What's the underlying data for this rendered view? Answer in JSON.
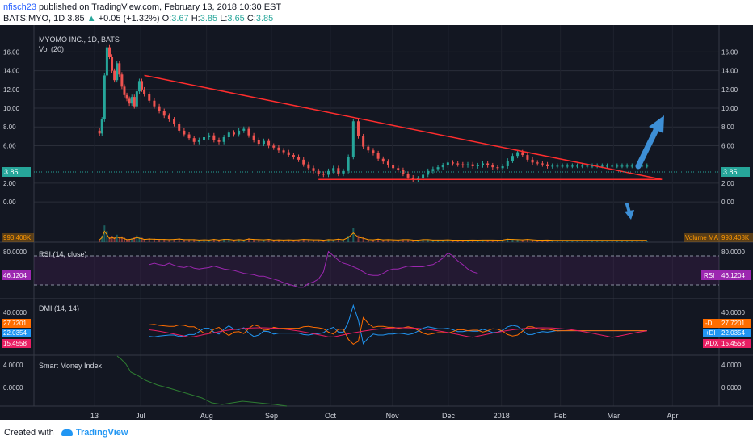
{
  "header": {
    "user": "nfisch23",
    "published": " published on TradingView.com, February 13, 2018 10:30 EST",
    "symbol": "BATS:MYO, 1D",
    "last": "3.85",
    "change_arrow": "▲",
    "change": "+0.05 (+1.32%)",
    "o_label": "O:",
    "o_val": "3.67",
    "h_label": "H:",
    "h_val": "3.85",
    "l_label": "L:",
    "l_val": "3.65",
    "c_label": "C:",
    "c_val": "3.85"
  },
  "footer": {
    "created_with": "Created with",
    "brand": "TradingView"
  },
  "colors": {
    "background": "#131722",
    "up": "#26a69a",
    "down": "#ef5350",
    "trendline": "#ff2d2d",
    "annotation_arrow": "#3d8fd6",
    "rsi": "#9c27b0",
    "dmi_plus": "#2196f3",
    "dmi_minus": "#ff6d00",
    "adx": "#e91e63",
    "smi": "#2e7d32",
    "volume_ma": "#ff9800"
  },
  "chart_data": {
    "type": "line",
    "title": "MYOMO INC., 1D, BATS",
    "subtitle": "Vol (20)",
    "x_ticks": [
      "13",
      "Jul",
      "Aug",
      "Sep",
      "Oct",
      "Nov",
      "Dec",
      "2018",
      "Feb",
      "Mar",
      "Apr"
    ],
    "ylim": [
      -1.2,
      17.5
    ],
    "y_ticks": [
      "16.00",
      "14.00",
      "12.00",
      "10.00",
      "8.00",
      "6.00",
      "2.00",
      "0.00"
    ],
    "last_price_label": "3.85",
    "volume_label": "993.408K",
    "volume_ma_label": "Volume MA",
    "price_series": {
      "name": "MYO",
      "x": [
        0,
        2,
        3,
        4,
        5,
        6,
        7,
        8,
        9,
        10,
        11,
        12,
        13,
        14,
        15,
        16,
        17,
        18,
        19,
        20,
        22,
        24,
        26,
        28,
        30,
        32,
        34,
        36,
        38,
        40,
        42,
        44,
        46,
        48,
        50,
        52,
        54,
        56,
        58,
        60,
        62,
        64,
        66,
        68,
        70,
        72,
        74,
        76,
        78,
        80,
        82,
        84,
        86,
        88,
        90,
        92,
        94,
        96,
        98,
        100,
        102,
        104,
        106,
        108,
        110,
        112,
        114,
        116,
        118,
        120,
        122,
        124,
        126,
        128,
        130,
        132,
        134,
        136,
        138,
        140,
        142,
        144,
        146,
        148,
        150,
        152,
        154,
        156,
        158,
        160,
        162,
        164,
        166,
        168,
        170,
        172,
        174,
        176,
        178,
        180,
        182,
        184,
        186,
        188,
        190,
        192,
        194,
        196,
        198,
        200,
        202,
        204,
        206,
        208,
        210,
        212,
        214,
        216,
        218,
        220,
        222,
        224,
        226,
        228,
        230,
        232,
        234,
        236,
        238,
        240,
        242,
        244,
        246,
        248,
        250
      ],
      "y": [
        7.6,
        7.3,
        8.8,
        13.5,
        16.5,
        15.5,
        14.0,
        13.0,
        14.8,
        13.6,
        12.3,
        11.4,
        11.0,
        10.5,
        11.2,
        10.2,
        11.8,
        12.9,
        12.0,
        11.5,
        10.8,
        10.2,
        9.7,
        9.2,
        8.8,
        8.3,
        7.6,
        7.2,
        6.8,
        6.4,
        6.6,
        6.9,
        7.1,
        6.6,
        6.4,
        6.9,
        7.4,
        7.2,
        7.6,
        7.8,
        7.1,
        6.6,
        6.2,
        6.5,
        6.0,
        5.8,
        5.5,
        5.3,
        5.0,
        4.8,
        4.5,
        4.0,
        3.6,
        3.3,
        3.0,
        2.9,
        3.3,
        3.6,
        3.0,
        3.3,
        4.8,
        8.6,
        7.0,
        5.9,
        5.5,
        5.2,
        4.6,
        4.3,
        3.9,
        3.6,
        3.4,
        3.0,
        2.6,
        2.4,
        2.5,
        2.9,
        3.3,
        3.5,
        3.7,
        3.9,
        4.2,
        4.1,
        4.0,
        3.9,
        4.0,
        3.8,
        3.9,
        4.1,
        3.9,
        3.7,
        3.6,
        3.8,
        4.4,
        4.9,
        5.3,
        5.0,
        4.5,
        4.2,
        4.1,
        4.0,
        3.8,
        3.85,
        3.85,
        3.85,
        3.85,
        3.85,
        3.85,
        3.85,
        3.85,
        3.85,
        3.85,
        3.85,
        3.85,
        3.85,
        3.85,
        3.85,
        3.85,
        3.85,
        3.85,
        3.85,
        3.85,
        3.85,
        3.85,
        3.85,
        3.85,
        3.85,
        3.85,
        3.85,
        3.85,
        3.85,
        3.85,
        3.85,
        3.85,
        3.85,
        3.85
      ]
    },
    "trendlines": [
      {
        "name": "descending resistance",
        "x": [
          20,
          228
        ],
        "y": [
          13.5,
          2.4
        ]
      },
      {
        "name": "horizontal support",
        "x": [
          90,
          228
        ],
        "y": [
          2.4,
          2.4
        ]
      }
    ],
    "rsi": {
      "label": "RSI (14, close)",
      "value_label": "46.1204",
      "short_label": "RSI",
      "ylim": [
        20,
        90
      ],
      "bands": [
        70,
        30
      ],
      "tick": "80.0000",
      "values": [
        null,
        null,
        null,
        null,
        null,
        null,
        null,
        null,
        null,
        null,
        null,
        null,
        null,
        null,
        null,
        null,
        null,
        null,
        null,
        null,
        58,
        60,
        58,
        57,
        60,
        57,
        55,
        54,
        56,
        53,
        52,
        53,
        54,
        56,
        54,
        52,
        51,
        50,
        48,
        46,
        45,
        44,
        42,
        42,
        40,
        38,
        36,
        33,
        31,
        29,
        27,
        27,
        32,
        34,
        38,
        48,
        76,
        70,
        64,
        60,
        58,
        55,
        52,
        48,
        44,
        43,
        43,
        46,
        50,
        52,
        52,
        54,
        56,
        55,
        55,
        55,
        57,
        58,
        62,
        67,
        74,
        70,
        63,
        58,
        52,
        48,
        46,
        null,
        null,
        null,
        null,
        null,
        null,
        null,
        null,
        null,
        null,
        null,
        null,
        null,
        null,
        null,
        null,
        null,
        null,
        null,
        null,
        null,
        null,
        null,
        null,
        null,
        null,
        null,
        null,
        null,
        null,
        null,
        null,
        null,
        null,
        null,
        null,
        null,
        null,
        null,
        null,
        null,
        null,
        null,
        null,
        null,
        null
      ]
    },
    "dmi": {
      "label": "DMI (14, 14)",
      "tick": "40.0000",
      "ylim": [
        0,
        50
      ],
      "plus": {
        "name": "+DI",
        "value_label": "22.0354"
      },
      "minus": {
        "name": "-DI",
        "value_label": "27.7201"
      },
      "adx": {
        "name": "ADX",
        "value_label": "15.4558"
      }
    },
    "smi": {
      "label": "Smart Money Index",
      "ticks": [
        "4.0000",
        "0.0000"
      ]
    }
  }
}
